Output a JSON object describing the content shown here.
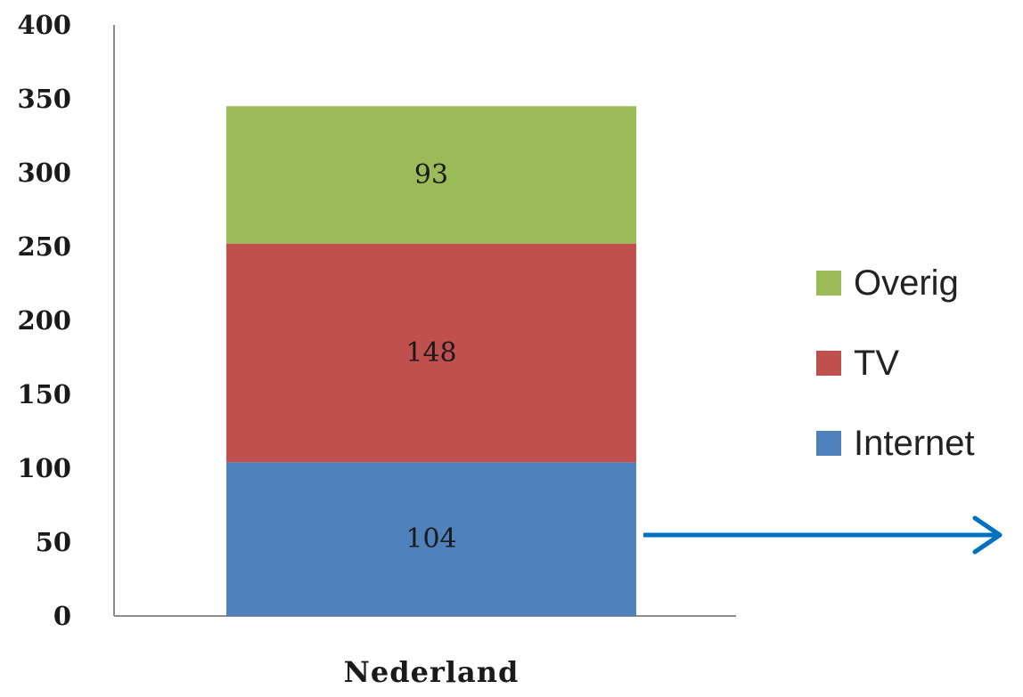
{
  "chart_data": {
    "type": "bar",
    "stacked": true,
    "categories": [
      "Nederland"
    ],
    "series": [
      {
        "name": "Internet",
        "values": [
          104
        ],
        "color": "#4f81bd"
      },
      {
        "name": "TV",
        "values": [
          148
        ],
        "color": "#c0504d"
      },
      {
        "name": "Overig",
        "values": [
          93
        ],
        "color": "#9bbb59"
      }
    ],
    "ylim": [
      0,
      400
    ],
    "yticks": [
      0,
      50,
      100,
      150,
      200,
      250,
      300,
      350,
      400
    ],
    "grid": false,
    "legend": {
      "placement": "right",
      "order": [
        "Overig",
        "TV",
        "Internet"
      ]
    },
    "annotation_arrow_color": "#0070c0"
  }
}
